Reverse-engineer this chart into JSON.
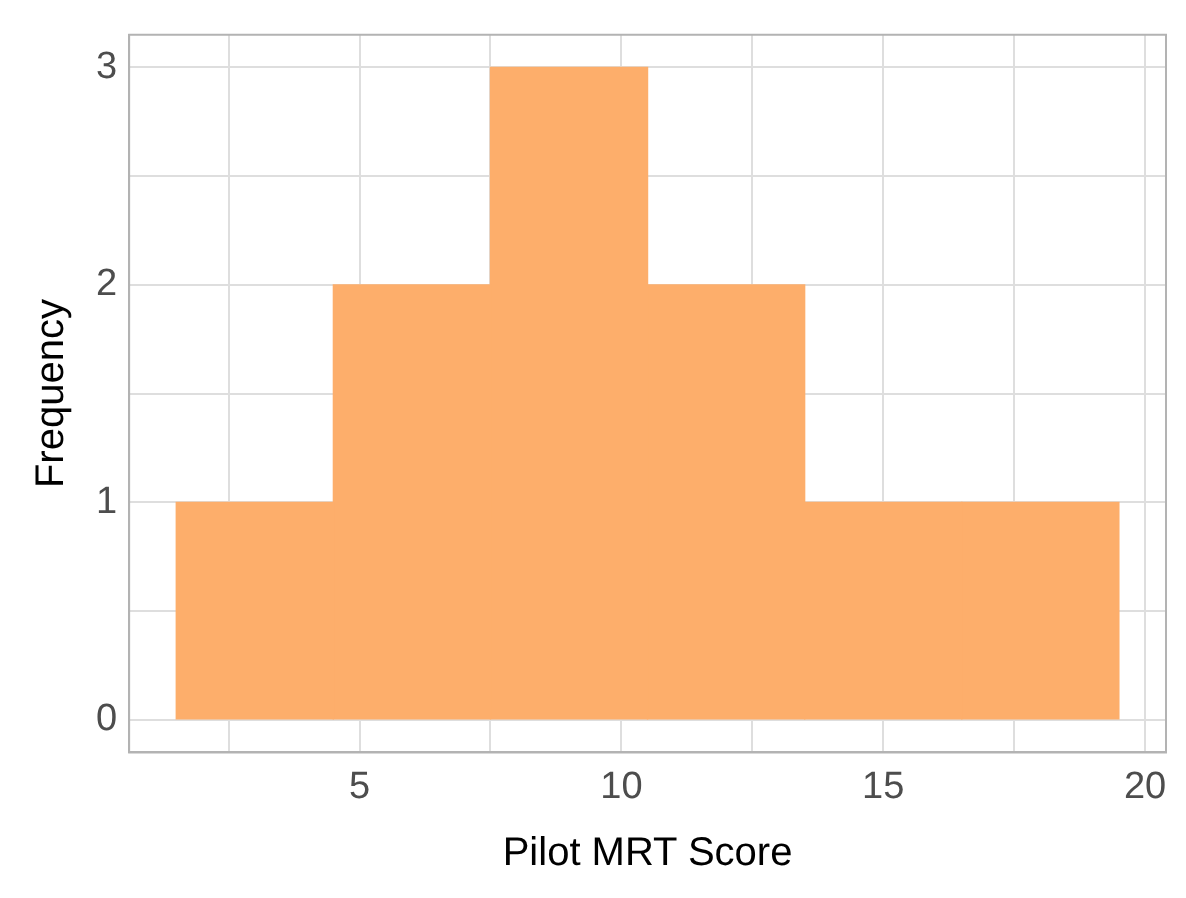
{
  "chart_data": {
    "type": "histogram",
    "xlabel": "Pilot MRT Score",
    "ylabel": "Frequency",
    "bins": [
      1.5,
      4.5,
      7.5,
      10.5,
      13.5,
      16.5,
      19.5
    ],
    "values": [
      1,
      2,
      3,
      2,
      1,
      1
    ],
    "color": "#fdae6b",
    "xlim": [
      0.6,
      20.4
    ],
    "xticks": [
      {
        "value": 2.5,
        "label": null
      },
      5,
      {
        "value": 7.5,
        "label": null
      },
      10,
      {
        "value": 12.5,
        "label": null
      },
      15,
      {
        "value": 17.5,
        "label": null
      },
      20
    ],
    "ylim": [
      -0.15,
      3.15
    ],
    "yticks": [
      0,
      {
        "value": 0.5,
        "label": null
      },
      1,
      {
        "value": 1.5,
        "label": null
      },
      2,
      {
        "value": 2.5,
        "label": null
      },
      3
    ],
    "grid": true
  }
}
